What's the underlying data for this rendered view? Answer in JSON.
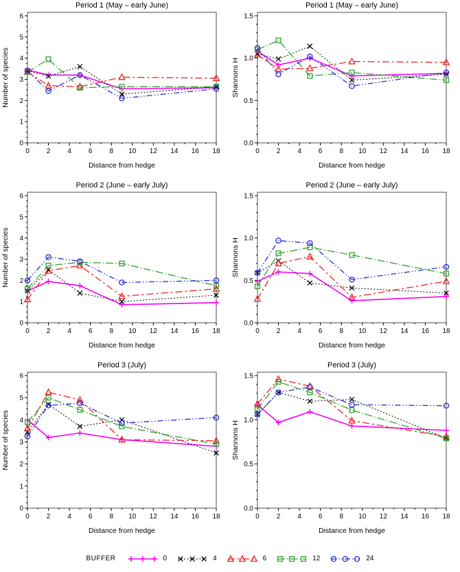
{
  "figure": {
    "legend": {
      "label": "BUFFER",
      "items": [
        {
          "name": "0"
        },
        {
          "name": "4"
        },
        {
          "name": "6"
        },
        {
          "name": "12"
        },
        {
          "name": "24"
        }
      ]
    },
    "series_styles": {
      "0": {
        "color": "#F400F4",
        "dash": "",
        "marker": "plus",
        "line_width": 1.6
      },
      "4": {
        "color": "#000000",
        "dash": "2,2.5",
        "marker": "x",
        "line_width": 1
      },
      "6": {
        "color": "#EE2020",
        "dash": "10,4,3,4",
        "marker": "triangle",
        "line_width": 1.3
      },
      "12": {
        "color": "#2FA12F",
        "dash": "11,3,1.5,3",
        "marker": "square",
        "line_width": 1.3
      },
      "24": {
        "color": "#2929D6",
        "dash": "8,3,1.5,3,1.5,3",
        "marker": "circle",
        "line_width": 1.3
      }
    },
    "frame_color": "#4d4d4d",
    "tick_color": "#000000"
  },
  "chart_data": [
    {
      "type": "line",
      "title": "Period 1 (May – early June)",
      "xlabel": "Distance from hedge",
      "ylabel": "Number of species",
      "x": [
        0,
        2,
        5,
        9,
        18
      ],
      "xlim": [
        0,
        18
      ],
      "xticks": [
        "0",
        "2",
        "4",
        "6",
        "8",
        "10",
        "12",
        "14",
        "16",
        "18"
      ],
      "x_minor_per_major": 1,
      "ylim": [
        0,
        6
      ],
      "yticks": [
        "0",
        "1",
        "2",
        "3",
        "4",
        "5",
        "6"
      ],
      "y_minor_per_major": 3,
      "grid": false,
      "legend_position": "shared-bottom",
      "series": [
        {
          "name": "0",
          "values": [
            3.45,
            3.2,
            3.2,
            2.55,
            2.6
          ]
        },
        {
          "name": "4",
          "values": [
            3.4,
            3.15,
            3.6,
            2.3,
            2.65
          ]
        },
        {
          "name": "6",
          "values": [
            3.35,
            2.7,
            2.65,
            3.1,
            3.05
          ]
        },
        {
          "name": "12",
          "values": [
            3.35,
            3.95,
            2.6,
            2.65,
            2.65
          ]
        },
        {
          "name": "24",
          "values": [
            3.4,
            2.45,
            3.2,
            2.1,
            2.55
          ]
        }
      ]
    },
    {
      "type": "line",
      "title": "Period 1 (May – early June)",
      "xlabel": "Distance from hedge",
      "ylabel": "Shannons H",
      "x": [
        0,
        2,
        5,
        9,
        18
      ],
      "xlim": [
        0,
        18
      ],
      "xticks": [
        "0",
        "2",
        "4",
        "6",
        "8",
        "10",
        "12",
        "14",
        "16",
        "18"
      ],
      "x_minor_per_major": 1,
      "ylim": [
        0,
        1.5
      ],
      "yticks": [
        "0.0",
        "0.5",
        "1.0",
        "1.5"
      ],
      "y_minor_per_major": 4,
      "grid": false,
      "legend_position": "shared-bottom",
      "series": [
        {
          "name": "0",
          "values": [
            1.08,
            0.92,
            1.0,
            0.79,
            0.82
          ]
        },
        {
          "name": "4",
          "values": [
            1.05,
            0.99,
            1.14,
            0.74,
            0.81
          ]
        },
        {
          "name": "6",
          "values": [
            1.04,
            0.87,
            0.88,
            0.96,
            0.95
          ]
        },
        {
          "name": "12",
          "values": [
            1.1,
            1.21,
            0.79,
            0.83,
            0.74
          ]
        },
        {
          "name": "24",
          "values": [
            1.12,
            0.81,
            1.02,
            0.67,
            0.83
          ]
        }
      ]
    },
    {
      "type": "line",
      "title": "Period 2 (June – early July)",
      "xlabel": "Distance from hedge",
      "ylabel": "Number of species",
      "x": [
        0,
        2,
        5,
        9,
        18
      ],
      "xlim": [
        0,
        18
      ],
      "xticks": [
        "0",
        "2",
        "4",
        "6",
        "8",
        "10",
        "12",
        "14",
        "16",
        "18"
      ],
      "x_minor_per_major": 1,
      "ylim": [
        0,
        6
      ],
      "yticks": [
        "0",
        "1",
        "2",
        "3",
        "4",
        "5",
        "6"
      ],
      "y_minor_per_major": 3,
      "grid": false,
      "legend_position": "shared-bottom",
      "series": [
        {
          "name": "0",
          "values": [
            1.5,
            1.95,
            1.75,
            0.85,
            0.95
          ]
        },
        {
          "name": "4",
          "values": [
            1.5,
            2.5,
            1.4,
            1.0,
            1.3
          ]
        },
        {
          "name": "6",
          "values": [
            1.1,
            2.45,
            2.7,
            1.25,
            1.6
          ]
        },
        {
          "name": "12",
          "values": [
            1.6,
            2.7,
            2.85,
            2.8,
            1.75
          ]
        },
        {
          "name": "24",
          "values": [
            2.0,
            3.1,
            2.9,
            1.9,
            2.0
          ]
        }
      ]
    },
    {
      "type": "line",
      "title": "Period 2 (June – early July)",
      "xlabel": "Distance from hedge",
      "ylabel": "Shannons H",
      "x": [
        0,
        2,
        5,
        9,
        18
      ],
      "xlim": [
        0,
        18
      ],
      "xticks": [
        "0",
        "2",
        "4",
        "6",
        "8",
        "10",
        "12",
        "14",
        "16",
        "18"
      ],
      "x_minor_per_major": 1,
      "ylim": [
        0,
        1.5
      ],
      "yticks": [
        "0.0",
        "0.5",
        "1.0",
        "1.5"
      ],
      "y_minor_per_major": 4,
      "grid": false,
      "legend_position": "shared-bottom",
      "series": [
        {
          "name": "0",
          "values": [
            0.49,
            0.6,
            0.58,
            0.26,
            0.31
          ]
        },
        {
          "name": "4",
          "values": [
            0.59,
            0.73,
            0.47,
            0.41,
            0.35
          ]
        },
        {
          "name": "6",
          "values": [
            0.28,
            0.7,
            0.78,
            0.3,
            0.49
          ]
        },
        {
          "name": "12",
          "values": [
            0.43,
            0.82,
            0.89,
            0.8,
            0.58
          ]
        },
        {
          "name": "24",
          "values": [
            0.59,
            0.97,
            0.94,
            0.51,
            0.66
          ]
        }
      ]
    },
    {
      "type": "line",
      "title": "Period 3 (July)",
      "xlabel": "Distance from hedge",
      "ylabel": "Number of species",
      "x": [
        0,
        2,
        5,
        9,
        18
      ],
      "xlim": [
        0,
        18
      ],
      "xticks": [
        "0",
        "2",
        "4",
        "6",
        "8",
        "10",
        "12",
        "14",
        "16",
        "18"
      ],
      "x_minor_per_major": 1,
      "ylim": [
        0,
        6
      ],
      "yticks": [
        "0",
        "1",
        "2",
        "3",
        "4",
        "5",
        "6"
      ],
      "y_minor_per_major": 3,
      "grid": false,
      "legend_position": "shared-bottom",
      "series": [
        {
          "name": "0",
          "values": [
            4.0,
            3.2,
            3.4,
            3.1,
            2.8
          ]
        },
        {
          "name": "4",
          "values": [
            3.45,
            4.7,
            3.7,
            4.0,
            2.5
          ]
        },
        {
          "name": "6",
          "values": [
            3.6,
            5.25,
            4.9,
            3.1,
            3.05
          ]
        },
        {
          "name": "12",
          "values": [
            3.9,
            5.0,
            4.45,
            3.7,
            2.9
          ]
        },
        {
          "name": "24",
          "values": [
            3.25,
            4.65,
            4.75,
            3.85,
            4.1
          ]
        }
      ]
    },
    {
      "type": "line",
      "title": "Period 3 (July)",
      "xlabel": "Distance from hedge",
      "ylabel": "Shannons H",
      "x": [
        0,
        2,
        5,
        9,
        18
      ],
      "xlim": [
        0,
        18
      ],
      "xticks": [
        "0",
        "2",
        "4",
        "6",
        "8",
        "10",
        "12",
        "14",
        "16",
        "18"
      ],
      "x_minor_per_major": 1,
      "ylim": [
        0,
        1.5
      ],
      "yticks": [
        "0.0",
        "0.5",
        "1.0",
        "1.5"
      ],
      "y_minor_per_major": 4,
      "grid": false,
      "legend_position": "shared-bottom",
      "series": [
        {
          "name": "0",
          "values": [
            1.17,
            0.97,
            1.09,
            0.93,
            0.88
          ]
        },
        {
          "name": "4",
          "values": [
            1.06,
            1.31,
            1.21,
            1.23,
            0.79
          ]
        },
        {
          "name": "6",
          "values": [
            1.18,
            1.46,
            1.38,
            0.99,
            0.81
          ]
        },
        {
          "name": "12",
          "values": [
            1.12,
            1.43,
            1.31,
            1.11,
            0.79
          ]
        },
        {
          "name": "24",
          "values": [
            1.06,
            1.31,
            1.37,
            1.17,
            1.16
          ]
        }
      ]
    }
  ]
}
